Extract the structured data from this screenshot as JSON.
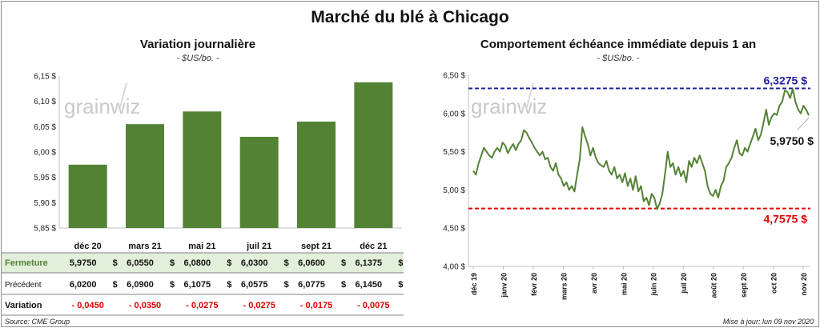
{
  "title": "Marché du blé à Chicago",
  "brand": "grainwiz",
  "source": "Source: CME Group",
  "updated": "Mise à jour: lun 09 nov 2020",
  "colors": {
    "bar": "#548235",
    "line": "#548235",
    "high": "#2020a0",
    "low": "#e00000",
    "neg": "#e00000",
    "band": "#e2efda"
  },
  "chart_data": [
    {
      "type": "bar",
      "title": "Variation journalière",
      "subtitle": "- $US/bo. -",
      "categories": [
        "déc 20",
        "mars 21",
        "mai 21",
        "juil 21",
        "sept 21",
        "déc 21"
      ],
      "values": [
        5.975,
        6.055,
        6.08,
        6.03,
        6.06,
        6.1375
      ],
      "ylim": [
        5.85,
        6.15
      ],
      "yticks": [
        "5,85 $",
        "5,90 $",
        "5,95 $",
        "6,00 $",
        "6,05 $",
        "6,10 $",
        "6,15 $"
      ],
      "grid": false,
      "table": {
        "rows": [
          {
            "label": "Fermeture",
            "values": [
              "5,9750",
              "6,0550",
              "6,0800",
              "6,0300",
              "6,0600",
              "6,1375"
            ],
            "unit": "$"
          },
          {
            "label": "Précédent",
            "values": [
              "6,0200",
              "6,0900",
              "6,1075",
              "6,0575",
              "6,0775",
              "6,1450"
            ],
            "unit": "$"
          },
          {
            "label": "Variation",
            "values": [
              "- 0,0450",
              "- 0,0350",
              "- 0,0275",
              "- 0,0275",
              "- 0,0175",
              "- 0,0075"
            ]
          }
        ]
      }
    },
    {
      "type": "line",
      "title": "Comportement échéance immédiate depuis 1 an",
      "subtitle": "- $US/bo. -",
      "ylim": [
        4.0,
        6.5
      ],
      "yticks": [
        "4,00 $",
        "4,50 $",
        "5,00 $",
        "5,50 $",
        "6,00 $",
        "6,50 $"
      ],
      "grid": false,
      "x_labels": [
        "déc 19",
        "janv 20",
        "févr 20",
        "mars 20",
        "avr 20",
        "mai 20",
        "juin 20",
        "juil 20",
        "août 20",
        "sept 20",
        "oct 20",
        "nov 20"
      ],
      "values": [
        5.25,
        5.2,
        5.35,
        5.45,
        5.55,
        5.5,
        5.45,
        5.42,
        5.5,
        5.55,
        5.5,
        5.62,
        5.58,
        5.48,
        5.55,
        5.6,
        5.52,
        5.6,
        5.65,
        5.78,
        5.75,
        5.68,
        5.62,
        5.55,
        5.5,
        5.45,
        5.5,
        5.4,
        5.42,
        5.3,
        5.25,
        5.35,
        5.2,
        5.15,
        5.05,
        5.1,
        5.0,
        5.05,
        4.98,
        5.2,
        5.4,
        5.82,
        5.7,
        5.6,
        5.45,
        5.55,
        5.42,
        5.35,
        5.32,
        5.3,
        5.38,
        5.25,
        5.2,
        5.3,
        5.15,
        5.2,
        5.1,
        5.22,
        5.05,
        5.15,
        5.0,
        5.18,
        4.98,
        5.05,
        4.85,
        4.9,
        4.8,
        4.95,
        4.9,
        4.75,
        4.82,
        4.95,
        5.2,
        5.5,
        5.3,
        5.35,
        5.2,
        5.3,
        5.18,
        5.25,
        5.1,
        5.38,
        5.3,
        5.42,
        5.35,
        5.45,
        5.35,
        5.25,
        5.05,
        4.95,
        4.92,
        5.0,
        4.9,
        5.05,
        5.12,
        5.3,
        5.35,
        5.42,
        5.55,
        5.65,
        5.48,
        5.45,
        5.55,
        5.5,
        5.6,
        5.7,
        5.8,
        5.65,
        5.72,
        5.88,
        6.05,
        5.85,
        5.95,
        6.0,
        5.98,
        6.1,
        6.15,
        6.3,
        6.28,
        6.2,
        6.32,
        6.15,
        6.05,
        6.0,
        6.1,
        6.05,
        5.975
      ],
      "high": {
        "value": 6.3275,
        "label": "6,3275 $"
      },
      "low": {
        "value": 4.7575,
        "label": "4,7575 $"
      },
      "last": {
        "value": 5.975,
        "label": "5,9750 $"
      }
    }
  ]
}
